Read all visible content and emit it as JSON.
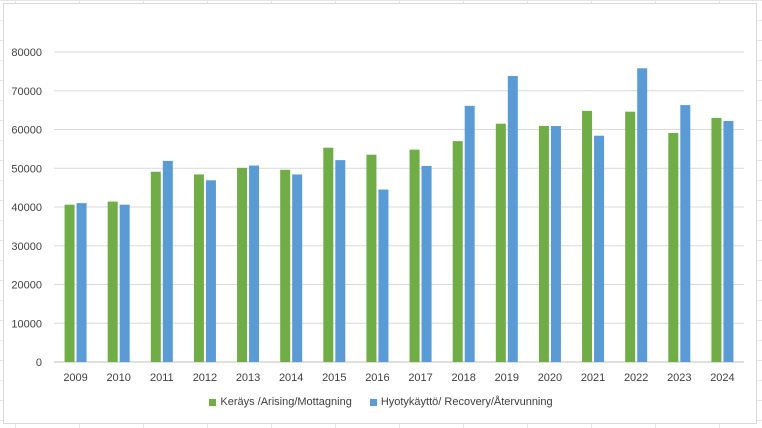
{
  "chart_data": {
    "type": "bar",
    "title": "",
    "xlabel": "",
    "ylabel": "",
    "categories": [
      "2009",
      "2010",
      "2011",
      "2012",
      "2013",
      "2014",
      "2015",
      "2016",
      "2017",
      "2018",
      "2019",
      "2020",
      "2021",
      "2022",
      "2023",
      "2024"
    ],
    "series": [
      {
        "name": "Keräys /Arising/Mottagning",
        "color": "#70AD47",
        "values": [
          40600,
          41400,
          49100,
          48400,
          50100,
          49600,
          55300,
          53500,
          54800,
          57000,
          61500,
          60900,
          64800,
          64600,
          59100,
          63000
        ]
      },
      {
        "name": "Hyotykäyttö/ Recovery/Återvunning",
        "color": "#5B9BD5",
        "values": [
          41000,
          40600,
          51900,
          46900,
          50700,
          48400,
          52100,
          44500,
          50600,
          66100,
          73800,
          60900,
          58400,
          75800,
          66300,
          62200
        ]
      }
    ],
    "ylim": [
      0,
      80000
    ],
    "yticks": [
      0,
      10000,
      20000,
      30000,
      40000,
      50000,
      60000,
      70000,
      80000
    ],
    "grid": true,
    "legend_position": "bottom"
  }
}
